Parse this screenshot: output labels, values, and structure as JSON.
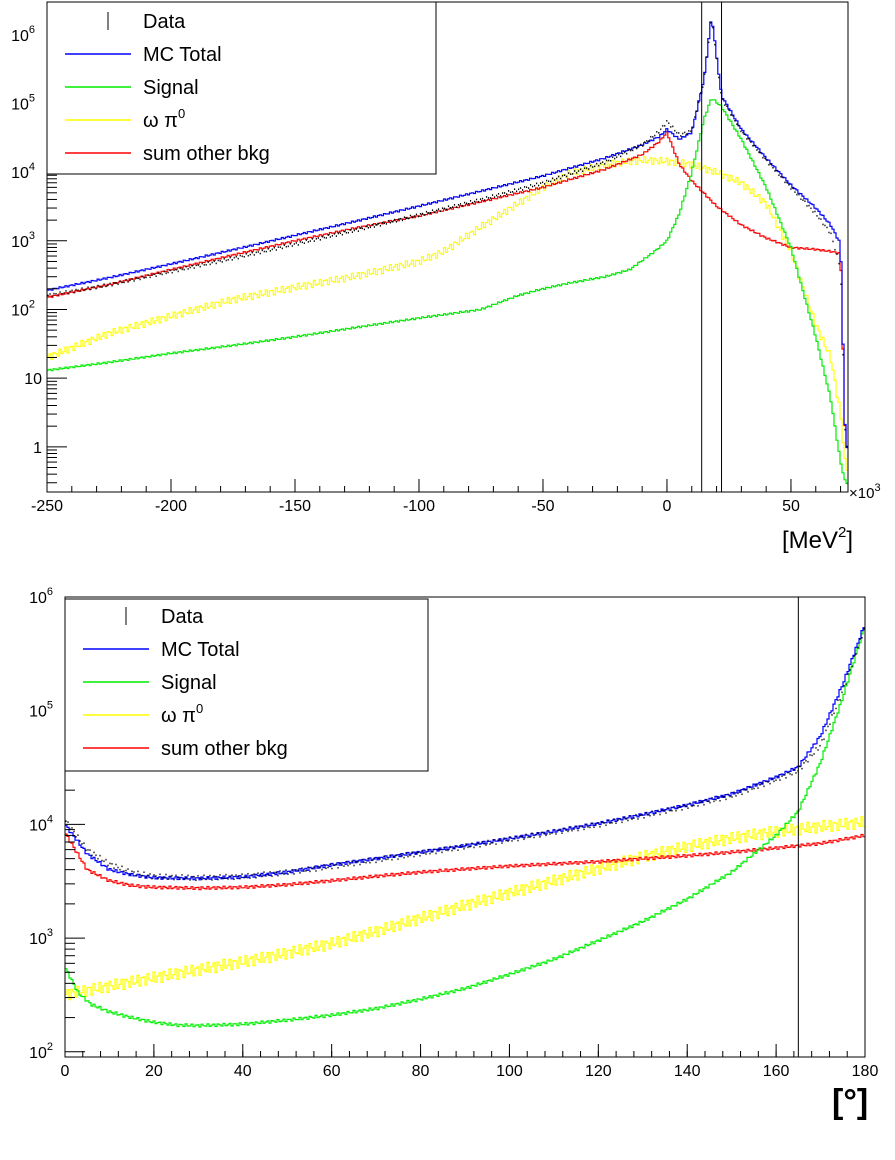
{
  "chart_data": [
    {
      "type": "line",
      "title": "",
      "xlabel": "[MeV",
      "xlabel_sup": "2",
      "xlabel_close": "]",
      "x_multiplier_label": "×10",
      "x_multiplier_sup": "3",
      "ylabel": "",
      "xlim": [
        -250,
        73
      ],
      "ylim": [
        0.22,
        3000000
      ],
      "yscale": "log",
      "grid": false,
      "legend_position": "top-left",
      "xticks": [
        {
          "v": -250,
          "label": "-250"
        },
        {
          "v": -200,
          "label": "-200"
        },
        {
          "v": -150,
          "label": "-150"
        },
        {
          "v": -100,
          "label": "-100"
        },
        {
          "v": -50,
          "label": "-50"
        },
        {
          "v": 0,
          "label": "0"
        },
        {
          "v": 50,
          "label": "50"
        }
      ],
      "yticks": [
        {
          "v": 1,
          "base": "1",
          "exp": ""
        },
        {
          "v": 10,
          "base": "10",
          "exp": ""
        },
        {
          "v": 100,
          "base": "10",
          "exp": "2"
        },
        {
          "v": 1000,
          "base": "10",
          "exp": "3"
        },
        {
          "v": 10000,
          "base": "10",
          "exp": "4"
        },
        {
          "v": 100000,
          "base": "10",
          "exp": "5"
        },
        {
          "v": 1000000,
          "base": "10",
          "exp": "6"
        }
      ],
      "cut_lines": [
        14,
        22
      ],
      "legend": [
        {
          "label": "Data",
          "color": "#000000",
          "marker": "errorbar"
        },
        {
          "label": "MC Total",
          "color": "#0000ff",
          "marker": "line"
        },
        {
          "label": "Signal",
          "color": "#00ee00",
          "marker": "line"
        },
        {
          "label": "ω π",
          "sup": "0",
          "color": "#ffff00",
          "marker": "line"
        },
        {
          "label": "sum other bkg",
          "color": "#ff0000",
          "marker": "line"
        }
      ],
      "series": [
        {
          "name": "Data",
          "color": "#000000",
          "style": "dots",
          "x": [
            -250,
            -225,
            -200,
            -175,
            -150,
            -125,
            -100,
            -75,
            -50,
            -25,
            -10,
            -3,
            0,
            5,
            10,
            15,
            18,
            22,
            30,
            40,
            50,
            60,
            66,
            70,
            72
          ],
          "y": [
            160,
            230,
            360,
            560,
            900,
            1450,
            2400,
            4000,
            7000,
            14000,
            25000,
            40000,
            55000,
            35000,
            40000,
            220000,
            1800000,
            120000,
            40000,
            15000,
            6000,
            2500,
            1300,
            400,
            1
          ]
        },
        {
          "name": "MC Total",
          "color": "#0000ff",
          "style": "step",
          "x": [
            -250,
            -225,
            -200,
            -175,
            -150,
            -125,
            -100,
            -75,
            -50,
            -25,
            -10,
            -3,
            0,
            5,
            10,
            15,
            18,
            22,
            30,
            40,
            50,
            60,
            66,
            70,
            72
          ],
          "y": [
            190,
            290,
            460,
            740,
            1200,
            1950,
            3200,
            5300,
            8800,
            16000,
            25000,
            33000,
            42000,
            30000,
            38000,
            230000,
            1900000,
            130000,
            42000,
            16000,
            6500,
            3000,
            1700,
            900,
            1
          ]
        },
        {
          "name": "Signal",
          "color": "#00ee00",
          "style": "step",
          "x": [
            -250,
            -225,
            -200,
            -175,
            -150,
            -125,
            -100,
            -75,
            -60,
            -50,
            -40,
            -25,
            -15,
            -5,
            0,
            5,
            10,
            15,
            18,
            22,
            30,
            40,
            50,
            60,
            66,
            70,
            72
          ],
          "y": [
            13,
            17,
            23,
            30,
            40,
            55,
            75,
            100,
            160,
            200,
            240,
            300,
            380,
            700,
            1000,
            2500,
            10000,
            60000,
            120000,
            90000,
            30000,
            6000,
            800,
            40,
            5,
            0.6,
            0.3
          ]
        },
        {
          "name": "ω π",
          "sup": "0",
          "color": "#ffff00",
          "style": "step",
          "x": [
            -250,
            -225,
            -200,
            -175,
            -150,
            -125,
            -100,
            -90,
            -75,
            -60,
            -50,
            -40,
            -25,
            -10,
            0,
            10,
            20,
            30,
            40,
            50,
            60,
            66,
            70,
            72
          ],
          "y": [
            20,
            45,
            80,
            140,
            210,
            310,
            500,
            700,
            1600,
            3500,
            6000,
            9500,
            13000,
            15000,
            14500,
            13000,
            10000,
            7000,
            3500,
            700,
            60,
            20,
            3,
            0.5
          ]
        },
        {
          "name": "sum other bkg",
          "color": "#ff0000",
          "style": "step",
          "x": [
            -250,
            -225,
            -200,
            -175,
            -150,
            -125,
            -100,
            -75,
            -50,
            -25,
            -10,
            -3,
            0,
            5,
            10,
            20,
            30,
            40,
            50,
            60,
            66,
            70,
            72
          ],
          "y": [
            150,
            230,
            380,
            620,
            1000,
            1550,
            2300,
            3700,
            6000,
            11000,
            18000,
            28000,
            38000,
            13000,
            7500,
            3200,
            1700,
            1100,
            800,
            750,
            700,
            650,
            1
          ]
        }
      ]
    },
    {
      "type": "line",
      "title": "",
      "xlabel": "[°]",
      "ylabel": "",
      "xlim": [
        0,
        180
      ],
      "ylim": [
        90,
        1000000
      ],
      "yscale": "log",
      "grid": false,
      "legend_position": "top-left",
      "xticks": [
        {
          "v": 0,
          "label": "0"
        },
        {
          "v": 20,
          "label": "20"
        },
        {
          "v": 40,
          "label": "40"
        },
        {
          "v": 60,
          "label": "60"
        },
        {
          "v": 80,
          "label": "80"
        },
        {
          "v": 100,
          "label": "100"
        },
        {
          "v": 120,
          "label": "120"
        },
        {
          "v": 140,
          "label": "140"
        },
        {
          "v": 160,
          "label": "160"
        },
        {
          "v": 180,
          "label": "180"
        }
      ],
      "yticks": [
        {
          "v": 100,
          "base": "10",
          "exp": "2"
        },
        {
          "v": 1000,
          "base": "10",
          "exp": "3"
        },
        {
          "v": 10000,
          "base": "10",
          "exp": "4"
        },
        {
          "v": 100000,
          "base": "10",
          "exp": "5"
        },
        {
          "v": 1000000,
          "base": "10",
          "exp": "6"
        }
      ],
      "cut_lines": [
        165
      ],
      "legend": [
        {
          "label": "Data",
          "color": "#000000",
          "marker": "errorbar"
        },
        {
          "label": "MC Total",
          "color": "#0000ff",
          "marker": "line"
        },
        {
          "label": "Signal",
          "color": "#00ee00",
          "marker": "line"
        },
        {
          "label": "ω π",
          "sup": "0",
          "color": "#ffff00",
          "marker": "line"
        },
        {
          "label": "sum other bkg",
          "color": "#ff0000",
          "marker": "line"
        }
      ],
      "series": [
        {
          "name": "Data",
          "color": "#000000",
          "style": "dots",
          "x": [
            0,
            5,
            10,
            15,
            20,
            30,
            40,
            50,
            60,
            70,
            80,
            90,
            100,
            110,
            120,
            130,
            140,
            150,
            160,
            165,
            170,
            175,
            180
          ],
          "y": [
            11000,
            6000,
            4500,
            3800,
            3500,
            3400,
            3500,
            3800,
            4300,
            4900,
            5600,
            6400,
            7400,
            8600,
            10000,
            12000,
            14500,
            18000,
            25000,
            30000,
            50000,
            150000,
            550000
          ]
        },
        {
          "name": "MC Total",
          "color": "#0000ff",
          "style": "step",
          "x": [
            0,
            5,
            10,
            15,
            20,
            30,
            40,
            50,
            60,
            70,
            80,
            90,
            100,
            110,
            120,
            130,
            140,
            150,
            160,
            165,
            170,
            175,
            180
          ],
          "y": [
            10000,
            5500,
            4000,
            3600,
            3400,
            3350,
            3450,
            3800,
            4400,
            5000,
            5700,
            6500,
            7500,
            8700,
            10200,
            12200,
            14800,
            18500,
            26000,
            32000,
            60000,
            170000,
            580000
          ]
        },
        {
          "name": "Signal",
          "color": "#00ee00",
          "style": "step",
          "x": [
            0,
            3,
            6,
            10,
            15,
            20,
            25,
            30,
            40,
            50,
            60,
            70,
            80,
            90,
            100,
            110,
            120,
            130,
            140,
            150,
            160,
            165,
            170,
            175,
            180
          ],
          "y": [
            560,
            330,
            260,
            225,
            200,
            182,
            172,
            170,
            175,
            190,
            210,
            240,
            290,
            360,
            480,
            650,
            950,
            1400,
            2200,
            3800,
            8000,
            13000,
            35000,
            130000,
            560000
          ]
        },
        {
          "name": "ω π",
          "sup": "0",
          "color": "#ffff00",
          "style": "step",
          "x": [
            0,
            10,
            20,
            30,
            40,
            50,
            60,
            70,
            80,
            90,
            100,
            110,
            120,
            130,
            140,
            150,
            160,
            170,
            180
          ],
          "y": [
            320,
            380,
            450,
            530,
            620,
            740,
            900,
            1150,
            1500,
            1950,
            2500,
            3200,
            4100,
            5200,
            6400,
            7600,
            8700,
            9600,
            10500
          ]
        },
        {
          "name": "sum other bkg",
          "color": "#ff0000",
          "style": "step",
          "x": [
            0,
            5,
            10,
            15,
            20,
            30,
            40,
            50,
            60,
            70,
            80,
            90,
            100,
            110,
            120,
            130,
            140,
            150,
            160,
            170,
            180
          ],
          "y": [
            8500,
            4000,
            3200,
            2900,
            2800,
            2750,
            2800,
            2950,
            3200,
            3500,
            3800,
            4050,
            4300,
            4500,
            4700,
            5000,
            5300,
            5700,
            6200,
            6800,
            8000
          ]
        }
      ]
    }
  ]
}
